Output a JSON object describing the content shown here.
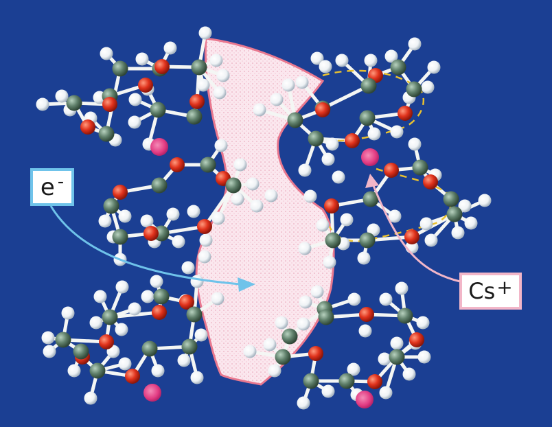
{
  "labels": {
    "electron": {
      "symbol": "e",
      "charge": "-"
    },
    "cesium": {
      "symbol": "Cs",
      "charge": "+"
    }
  },
  "colors": {
    "background": "#1b3f93",
    "carbon": "#5f7f6a",
    "oxygen": "#e0321c",
    "hydrogen": "#eef2f5",
    "bond": "#f4f6f4",
    "cesium_ion": "#e23c83",
    "channel_fill": "#fbe7ee",
    "channel_edge": "#e9788f",
    "electron_arrow": "#6fc3ea",
    "cesium_arrow": "#f2b6c8",
    "coordination_dash": "#e9c130"
  },
  "elements": [
    "carbon-atom",
    "oxygen-atom",
    "hydrogen-atom",
    "cesium-ion",
    "electron-channel"
  ]
}
